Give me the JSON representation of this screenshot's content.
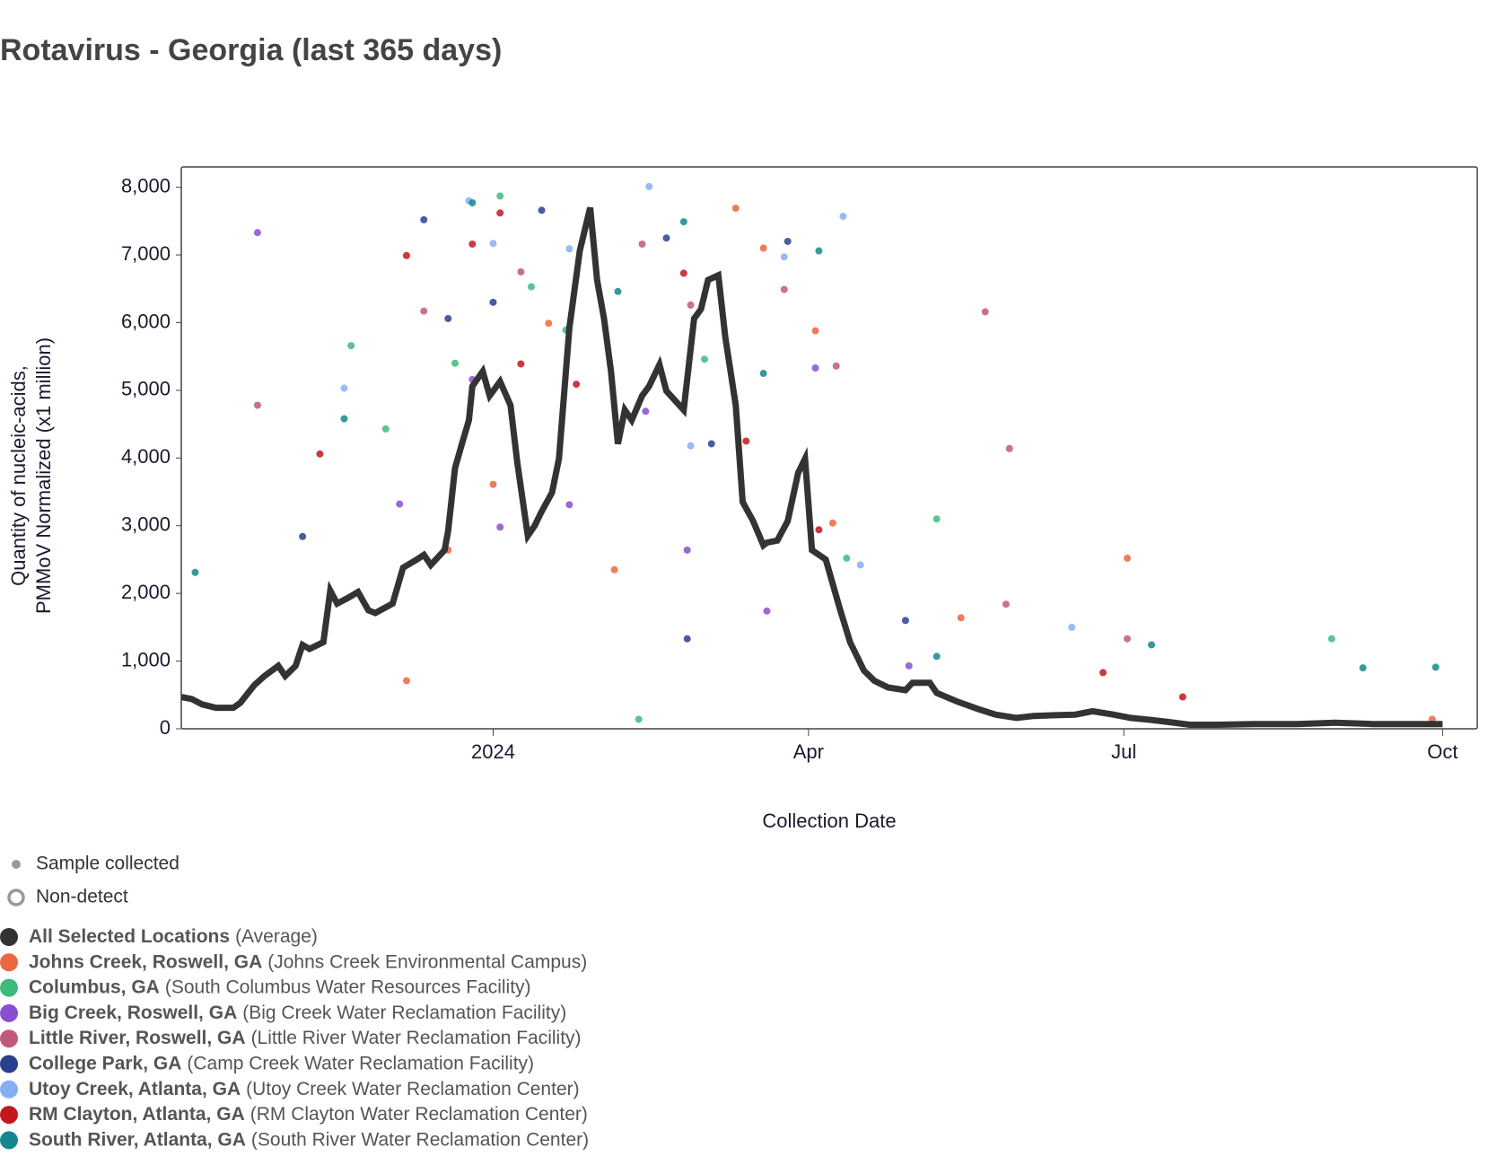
{
  "chart_data": {
    "type": "scatter",
    "title": "Rotavirus - Georgia (last 365 days)",
    "y_label": [
      "Quantity of nucleic-acids,",
      "PMMoV Normalized (x1 million)"
    ],
    "x_label": "Collection Date",
    "xlim": [
      "2023-10-03",
      "2024-10-11"
    ],
    "xticks": [
      {
        "value": "2024-01-01",
        "label": "2024"
      },
      {
        "value": "2024-04-01",
        "label": "Apr"
      },
      {
        "value": "2024-07-01",
        "label": "Jul"
      },
      {
        "value": "2024-10-01",
        "label": "Oct"
      }
    ],
    "ylim": [
      0,
      8300
    ],
    "yticks": [
      0,
      {
        "value": 1000,
        "label": "1,000"
      },
      {
        "value": 2000,
        "label": "2,000"
      },
      {
        "value": 3000,
        "label": "3,000"
      },
      {
        "value": 4000,
        "label": "4,000"
      },
      {
        "value": 5000,
        "label": "5,000"
      },
      {
        "value": 6000,
        "label": "6,000"
      },
      {
        "value": 7000,
        "label": "7,000"
      },
      {
        "value": 8000,
        "label": "8,000"
      }
    ],
    "marker_legend": [
      "Sample collected",
      "Non-detect"
    ],
    "series": [
      {
        "name": "All Selected Locations",
        "detail": "(Average)",
        "color": "#333333",
        "mode": "line",
        "x": [
          "2023-10-03",
          "2023-10-06",
          "2023-10-09",
          "2023-10-13",
          "2023-10-18",
          "2023-10-20",
          "2023-10-24",
          "2023-10-27",
          "2023-10-31",
          "2023-11-02",
          "2023-11-05",
          "2023-11-07",
          "2023-11-09",
          "2023-11-13",
          "2023-11-15",
          "2023-11-17",
          "2023-11-20",
          "2023-11-23",
          "2023-11-26",
          "2023-11-28",
          "2023-12-03",
          "2023-12-06",
          "2023-12-10",
          "2023-12-12",
          "2023-12-14",
          "2023-12-18",
          "2023-12-19",
          "2023-12-21",
          "2023-12-23",
          "2023-12-25",
          "2023-12-26",
          "2023-12-29",
          "2023-12-31",
          "2024-01-03",
          "2024-01-06",
          "2024-01-08",
          "2024-01-11",
          "2024-01-13",
          "2024-01-15",
          "2024-01-18",
          "2024-01-20",
          "2024-01-23",
          "2024-01-26",
          "2024-01-29",
          "2024-01-31",
          "2024-02-02",
          "2024-02-04",
          "2024-02-06",
          "2024-02-08",
          "2024-02-10",
          "2024-02-13",
          "2024-02-15",
          "2024-02-18",
          "2024-02-20",
          "2024-02-25",
          "2024-02-28",
          "2024-03-01",
          "2024-03-03",
          "2024-03-06",
          "2024-03-08",
          "2024-03-11",
          "2024-03-13",
          "2024-03-16",
          "2024-03-19",
          "2024-03-20",
          "2024-03-23",
          "2024-03-26",
          "2024-03-29",
          "2024-03-31",
          "2024-04-02",
          "2024-04-06",
          "2024-04-10",
          "2024-04-13",
          "2024-04-17",
          "2024-04-20",
          "2024-04-24",
          "2024-04-29",
          "2024-05-01",
          "2024-05-06",
          "2024-05-08",
          "2024-05-14",
          "2024-05-20",
          "2024-05-25",
          "2024-05-31",
          "2024-06-05",
          "2024-06-11",
          "2024-06-17",
          "2024-06-22",
          "2024-06-28",
          "2024-07-03",
          "2024-07-09",
          "2024-07-14",
          "2024-07-20",
          "2024-07-28",
          "2024-08-09",
          "2024-08-20",
          "2024-08-31",
          "2024-09-11",
          "2024-09-22",
          "2024-10-01"
        ],
        "values": [
          470,
          440,
          360,
          310,
          310,
          380,
          640,
          780,
          930,
          780,
          930,
          1240,
          1180,
          1280,
          2040,
          1850,
          1930,
          2020,
          1750,
          1710,
          1850,
          2380,
          2500,
          2570,
          2420,
          2640,
          2920,
          3850,
          4210,
          4560,
          5060,
          5280,
          4920,
          5130,
          4780,
          3920,
          2850,
          3000,
          3210,
          3490,
          3990,
          5920,
          7060,
          7700,
          6630,
          6060,
          5280,
          4210,
          4710,
          4560,
          4920,
          5060,
          5380,
          4990,
          4710,
          6060,
          6200,
          6630,
          6700,
          5780,
          4780,
          3350,
          3070,
          2710,
          2750,
          2780,
          3070,
          3780,
          3990,
          2640,
          2500,
          1780,
          1280,
          860,
          710,
          610,
          570,
          680,
          680,
          530,
          400,
          290,
          210,
          160,
          190,
          200,
          210,
          260,
          210,
          160,
          130,
          100,
          60,
          60,
          70,
          70,
          90,
          70,
          70,
          70
        ]
      },
      {
        "name": "Johns Creek, Roswell, GA",
        "detail": "(Johns Creek Environmental Campus)",
        "color": "#e8683f",
        "mode": "markers",
        "x": [
          "2023-12-07",
          "2023-12-19",
          "2024-01-01",
          "2024-01-17",
          "2024-02-05",
          "2024-03-11",
          "2024-03-19",
          "2024-04-03",
          "2024-04-08",
          "2024-05-15",
          "2024-07-02",
          "2024-09-28"
        ],
        "values": [
          710,
          2640,
          3610,
          5990,
          2350,
          7690,
          7100,
          5880,
          3040,
          1640,
          2520,
          140
        ]
      },
      {
        "name": "Columbus, GA",
        "detail": "(South Columbus Water Resources Facility)",
        "color": "#3dbb7c",
        "mode": "markers",
        "x": [
          "2023-11-21",
          "2023-12-01",
          "2023-12-21",
          "2024-01-03",
          "2024-01-12",
          "2024-01-22",
          "2024-02-12",
          "2024-03-02",
          "2024-04-12",
          "2024-05-08",
          "2024-08-30"
        ],
        "values": [
          5660,
          4430,
          5400,
          7870,
          6530,
          5890,
          140,
          5460,
          2520,
          3100,
          1330
        ]
      },
      {
        "name": "Big Creek, Roswell, GA",
        "detail": "(Big Creek Water Reclamation Facility)",
        "color": "#8a4fd1",
        "mode": "markers",
        "x": [
          "2023-10-25",
          "2023-12-05",
          "2023-12-26",
          "2024-01-03",
          "2024-01-23",
          "2024-02-14",
          "2024-02-26",
          "2024-03-20",
          "2024-04-03",
          "2024-04-30"
        ],
        "values": [
          7330,
          3320,
          5160,
          2980,
          3310,
          4690,
          2640,
          1740,
          5330,
          930
        ]
      },
      {
        "name": "Little River, Roswell, GA",
        "detail": "(Little River Water Reclamation Facility)",
        "color": "#c2577a",
        "mode": "markers",
        "x": [
          "2023-10-25",
          "2023-12-12",
          "2024-01-09",
          "2024-02-13",
          "2024-02-27",
          "2024-03-25",
          "2024-04-09",
          "2024-05-22",
          "2024-05-28",
          "2024-05-29",
          "2024-07-02"
        ],
        "values": [
          4780,
          6170,
          6750,
          7160,
          6260,
          6490,
          5360,
          6160,
          1840,
          4140,
          1330
        ]
      },
      {
        "name": "College Park, GA",
        "detail": "(Camp Creek Water Reclamation Facility)",
        "color": "#2a3f8f",
        "mode": "markers",
        "x": [
          "2023-11-07",
          "2023-12-12",
          "2023-12-19",
          "2024-01-01",
          "2024-01-15",
          "2024-02-20",
          "2024-02-26",
          "2024-03-04",
          "2024-03-26",
          "2024-04-29"
        ],
        "values": [
          2840,
          7520,
          6060,
          6300,
          7660,
          7250,
          1330,
          4210,
          7200,
          1600
        ]
      },
      {
        "name": "Utoy Creek, Atlanta, GA",
        "detail": "(Utoy Creek Water Reclamation Center)",
        "color": "#86aef5",
        "mode": "markers",
        "x": [
          "2023-11-19",
          "2023-12-25",
          "2024-01-01",
          "2024-01-23",
          "2024-02-15",
          "2024-02-27",
          "2024-03-25",
          "2024-04-11",
          "2024-04-16",
          "2024-06-16"
        ],
        "values": [
          5030,
          7800,
          7170,
          7090,
          8010,
          4180,
          6970,
          7570,
          2420,
          1500
        ]
      },
      {
        "name": "RM Clayton, Atlanta, GA",
        "detail": "(RM Clayton Water Reclamation Center)",
        "color": "#c4161c",
        "mode": "markers",
        "x": [
          "2023-11-12",
          "2023-12-07",
          "2023-12-26",
          "2024-01-03",
          "2024-01-09",
          "2024-01-25",
          "2024-02-25",
          "2024-03-14",
          "2024-04-04",
          "2024-06-25",
          "2024-07-18"
        ],
        "values": [
          4060,
          6990,
          7160,
          7620,
          5390,
          5090,
          6730,
          4250,
          2940,
          830,
          470
        ]
      },
      {
        "name": "South River, Atlanta, GA",
        "detail": "(South River Water Reclamation Center)",
        "color": "#15868f",
        "mode": "markers",
        "x": [
          "2023-10-07",
          "2023-11-19",
          "2023-12-26",
          "2024-02-06",
          "2024-02-25",
          "2024-03-19",
          "2024-04-04",
          "2024-05-08",
          "2024-07-09",
          "2024-09-08",
          "2024-09-29"
        ],
        "values": [
          2310,
          4580,
          7770,
          6460,
          7490,
          5250,
          7060,
          1070,
          1240,
          900,
          910
        ]
      }
    ]
  }
}
